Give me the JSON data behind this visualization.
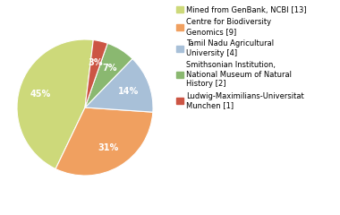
{
  "labels": [
    "Mined from GenBank, NCBI [13]",
    "Centre for Biodiversity\nGenomics [9]",
    "Tamil Nadu Agricultural\nUniversity [4]",
    "Smithsonian Institution,\nNational Museum of Natural\nHistory [2]",
    "Ludwig-Maximilians-Universitat\nMunchen [1]"
  ],
  "values": [
    13,
    9,
    4,
    2,
    1
  ],
  "colors": [
    "#cdd97a",
    "#f0a060",
    "#a8c0d8",
    "#8ab870",
    "#cc5544"
  ],
  "background_color": "#ffffff",
  "text_color": "#ffffff",
  "startangle": 83
}
